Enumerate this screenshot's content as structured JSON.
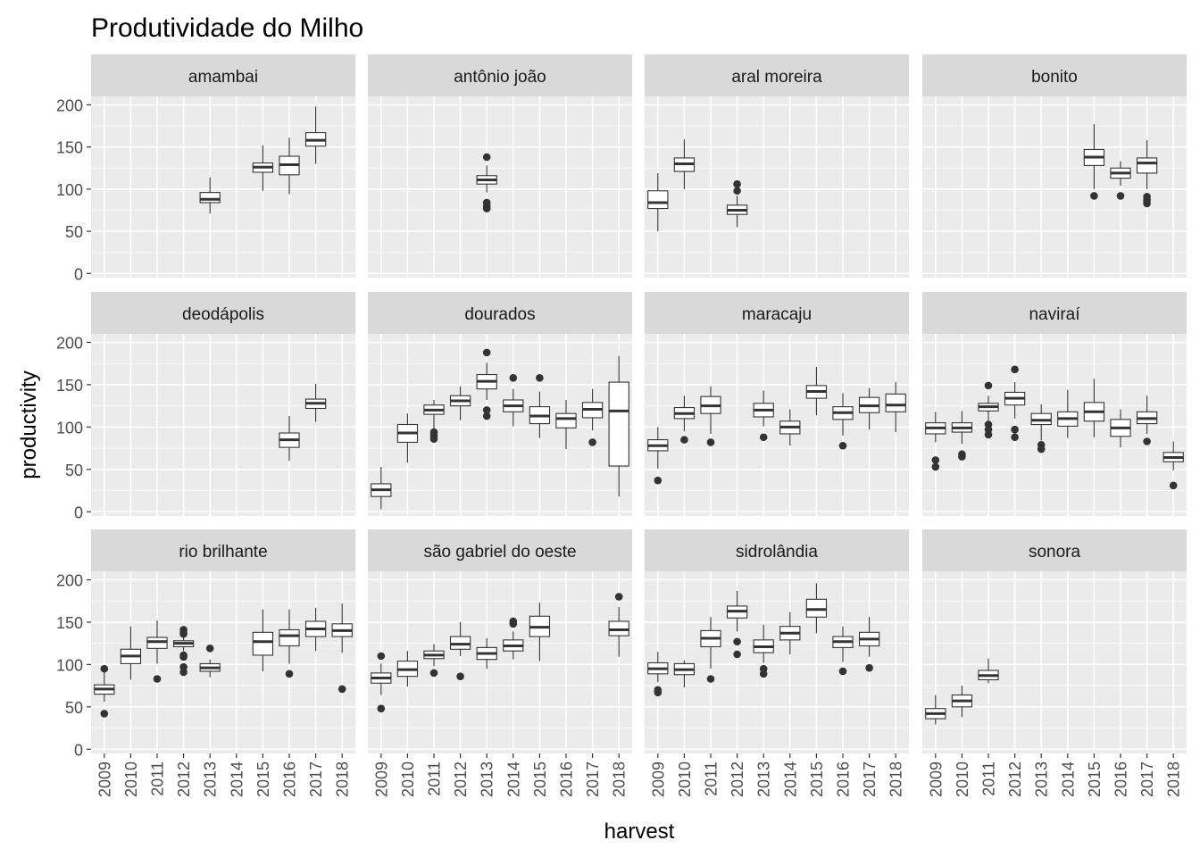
{
  "chart_data": {
    "type": "boxplot",
    "title": "Produtividade do Milho",
    "xlabel": "harvest",
    "ylabel": "productivity",
    "ylim": [
      -5,
      210
    ],
    "y_ticks": [
      0,
      50,
      100,
      150,
      200
    ],
    "x_categories": [
      "2009",
      "2010",
      "2011",
      "2012",
      "2013",
      "2014",
      "2015",
      "2016",
      "2017",
      "2018"
    ],
    "layout": "facet-wrap 3x4",
    "grid": true,
    "colors": {
      "panel_bg": "#ebebeb",
      "strip_bg": "#d9d9d9",
      "grid": "#ffffff",
      "box_fill": "#ffffff",
      "box_line": "#333333",
      "tick_text": "#4d4d4d"
    },
    "panels": [
      {
        "name": "amambai",
        "boxes": [
          {
            "x": "2013",
            "lw": 71,
            "q1": 84,
            "med": 88,
            "q3": 96,
            "uw": 114,
            "out": []
          },
          {
            "x": "2015",
            "lw": 98,
            "q1": 120,
            "med": 126,
            "q3": 131,
            "uw": 152,
            "out": []
          },
          {
            "x": "2016",
            "lw": 94,
            "q1": 117,
            "med": 129,
            "q3": 139,
            "uw": 161,
            "out": []
          },
          {
            "x": "2017",
            "lw": 130,
            "q1": 151,
            "med": 158,
            "q3": 167,
            "uw": 198,
            "out": []
          }
        ]
      },
      {
        "name": "antônio joão",
        "boxes": [
          {
            "x": "2013",
            "lw": 96,
            "q1": 106,
            "med": 111,
            "q3": 116,
            "uw": 128,
            "out": [
              138,
              84,
              80,
              77
            ]
          }
        ]
      },
      {
        "name": "aral moreira",
        "boxes": [
          {
            "x": "2009",
            "lw": 50,
            "q1": 77,
            "med": 84,
            "q3": 98,
            "uw": 119,
            "out": []
          },
          {
            "x": "2010",
            "lw": 100,
            "q1": 121,
            "med": 130,
            "q3": 137,
            "uw": 159,
            "out": []
          },
          {
            "x": "2012",
            "lw": 55,
            "q1": 70,
            "med": 75,
            "q3": 81,
            "uw": 92,
            "out": [
              106,
              98
            ]
          }
        ]
      },
      {
        "name": "bonito",
        "boxes": [
          {
            "x": "2015",
            "lw": 100,
            "q1": 128,
            "med": 138,
            "q3": 147,
            "uw": 177,
            "out": [
              92
            ]
          },
          {
            "x": "2016",
            "lw": 104,
            "q1": 113,
            "med": 119,
            "q3": 125,
            "uw": 133,
            "out": [
              92
            ]
          },
          {
            "x": "2017",
            "lw": 100,
            "q1": 119,
            "med": 131,
            "q3": 137,
            "uw": 158,
            "out": [
              91,
              87,
              83
            ]
          }
        ]
      },
      {
        "name": "deodápolis",
        "boxes": [
          {
            "x": "2016",
            "lw": 60,
            "q1": 76,
            "med": 85,
            "q3": 93,
            "uw": 113,
            "out": []
          },
          {
            "x": "2017",
            "lw": 106,
            "q1": 122,
            "med": 128,
            "q3": 133,
            "uw": 151,
            "out": []
          }
        ]
      },
      {
        "name": "dourados",
        "boxes": [
          {
            "x": "2009",
            "lw": 3,
            "q1": 18,
            "med": 26,
            "q3": 33,
            "uw": 53,
            "out": []
          },
          {
            "x": "2010",
            "lw": 58,
            "q1": 82,
            "med": 93,
            "q3": 103,
            "uw": 116,
            "out": []
          },
          {
            "x": "2011",
            "lw": 96,
            "q1": 115,
            "med": 120,
            "q3": 126,
            "uw": 132,
            "out": [
              94,
              90,
              86
            ]
          },
          {
            "x": "2012",
            "lw": 108,
            "q1": 125,
            "med": 131,
            "q3": 137,
            "uw": 148,
            "out": []
          },
          {
            "x": "2013",
            "lw": 132,
            "q1": 145,
            "med": 154,
            "q3": 162,
            "uw": 176,
            "out": [
              188,
              120,
              113
            ]
          },
          {
            "x": "2014",
            "lw": 101,
            "q1": 118,
            "med": 125,
            "q3": 132,
            "uw": 145,
            "out": [
              158
            ]
          },
          {
            "x": "2015",
            "lw": 87,
            "q1": 104,
            "med": 113,
            "q3": 124,
            "uw": 142,
            "out": [
              158
            ]
          },
          {
            "x": "2016",
            "lw": 74,
            "q1": 99,
            "med": 110,
            "q3": 116,
            "uw": 132,
            "out": []
          },
          {
            "x": "2017",
            "lw": 96,
            "q1": 111,
            "med": 121,
            "q3": 129,
            "uw": 145,
            "out": [
              82
            ]
          },
          {
            "x": "2018",
            "lw": 18,
            "q1": 54,
            "med": 119,
            "q3": 153,
            "uw": 184,
            "out": []
          }
        ]
      },
      {
        "name": "maracaju",
        "boxes": [
          {
            "x": "2009",
            "lw": 51,
            "q1": 72,
            "med": 78,
            "q3": 85,
            "uw": 100,
            "out": [
              37
            ]
          },
          {
            "x": "2010",
            "lw": 95,
            "q1": 110,
            "med": 116,
            "q3": 123,
            "uw": 137,
            "out": [
              85
            ]
          },
          {
            "x": "2011",
            "lw": 92,
            "q1": 116,
            "med": 125,
            "q3": 136,
            "uw": 148,
            "out": [
              82
            ]
          },
          {
            "x": "2013",
            "lw": 101,
            "q1": 112,
            "med": 120,
            "q3": 128,
            "uw": 143,
            "out": [
              88
            ]
          },
          {
            "x": "2014",
            "lw": 78,
            "q1": 92,
            "med": 100,
            "q3": 107,
            "uw": 121,
            "out": []
          },
          {
            "x": "2015",
            "lw": 114,
            "q1": 134,
            "med": 142,
            "q3": 149,
            "uw": 171,
            "out": []
          },
          {
            "x": "2016",
            "lw": 90,
            "q1": 109,
            "med": 117,
            "q3": 124,
            "uw": 140,
            "out": [
              78
            ]
          },
          {
            "x": "2017",
            "lw": 97,
            "q1": 117,
            "med": 125,
            "q3": 135,
            "uw": 146,
            "out": []
          },
          {
            "x": "2018",
            "lw": 94,
            "q1": 118,
            "med": 126,
            "q3": 139,
            "uw": 153,
            "out": []
          }
        ]
      },
      {
        "name": "naviraí",
        "boxes": [
          {
            "x": "2009",
            "lw": 82,
            "q1": 92,
            "med": 99,
            "q3": 105,
            "uw": 118,
            "out": [
              61,
              53
            ]
          },
          {
            "x": "2010",
            "lw": 80,
            "q1": 94,
            "med": 99,
            "q3": 105,
            "uw": 119,
            "out": [
              68,
              65
            ]
          },
          {
            "x": "2011",
            "lw": 105,
            "q1": 119,
            "med": 124,
            "q3": 128,
            "uw": 137,
            "out": [
              149,
              103,
              97,
              91
            ]
          },
          {
            "x": "2012",
            "lw": 110,
            "q1": 126,
            "med": 134,
            "q3": 141,
            "uw": 153,
            "out": [
              168,
              97,
              88
            ]
          },
          {
            "x": "2013",
            "lw": 84,
            "q1": 103,
            "med": 108,
            "q3": 116,
            "uw": 127,
            "out": [
              79,
              74
            ]
          },
          {
            "x": "2014",
            "lw": 87,
            "q1": 101,
            "med": 110,
            "q3": 118,
            "uw": 144,
            "out": []
          },
          {
            "x": "2015",
            "lw": 88,
            "q1": 107,
            "med": 118,
            "q3": 129,
            "uw": 157,
            "out": []
          },
          {
            "x": "2016",
            "lw": 76,
            "q1": 89,
            "med": 99,
            "q3": 109,
            "uw": 121,
            "out": []
          },
          {
            "x": "2017",
            "lw": 92,
            "q1": 104,
            "med": 110,
            "q3": 118,
            "uw": 137,
            "out": [
              83
            ]
          },
          {
            "x": "2018",
            "lw": 49,
            "q1": 59,
            "med": 64,
            "q3": 70,
            "uw": 83,
            "out": [
              31
            ]
          }
        ]
      },
      {
        "name": "rio brilhante",
        "boxes": [
          {
            "x": "2009",
            "lw": 56,
            "q1": 65,
            "med": 71,
            "q3": 76,
            "uw": 91,
            "out": [
              95,
              42
            ]
          },
          {
            "x": "2010",
            "lw": 82,
            "q1": 101,
            "med": 110,
            "q3": 118,
            "uw": 145,
            "out": []
          },
          {
            "x": "2011",
            "lw": 101,
            "q1": 119,
            "med": 127,
            "q3": 132,
            "uw": 152,
            "out": [
              83
            ]
          },
          {
            "x": "2012",
            "lw": 116,
            "q1": 121,
            "med": 125,
            "q3": 128,
            "uw": 133,
            "out": [
              141,
              138,
              136,
              111,
              109,
              97,
              91
            ]
          },
          {
            "x": "2013",
            "lw": 85,
            "q1": 92,
            "med": 96,
            "q3": 101,
            "uw": 106,
            "out": [
              119
            ]
          },
          {
            "x": "2015",
            "lw": 92,
            "q1": 111,
            "med": 127,
            "q3": 138,
            "uw": 165,
            "out": []
          },
          {
            "x": "2016",
            "lw": 101,
            "q1": 122,
            "med": 134,
            "q3": 141,
            "uw": 165,
            "out": [
              89
            ]
          },
          {
            "x": "2017",
            "lw": 116,
            "q1": 133,
            "med": 142,
            "q3": 151,
            "uw": 167,
            "out": []
          },
          {
            "x": "2018",
            "lw": 114,
            "q1": 133,
            "med": 140,
            "q3": 148,
            "uw": 172,
            "out": [
              71
            ]
          }
        ]
      },
      {
        "name": "são gabriel do oeste",
        "boxes": [
          {
            "x": "2009",
            "lw": 64,
            "q1": 78,
            "med": 84,
            "q3": 90,
            "uw": 101,
            "out": [
              110,
              48
            ]
          },
          {
            "x": "2010",
            "lw": 74,
            "q1": 86,
            "med": 94,
            "q3": 104,
            "uw": 116,
            "out": []
          },
          {
            "x": "2011",
            "lw": 98,
            "q1": 107,
            "med": 111,
            "q3": 116,
            "uw": 124,
            "out": [
              90
            ]
          },
          {
            "x": "2012",
            "lw": 110,
            "q1": 118,
            "med": 124,
            "q3": 133,
            "uw": 150,
            "out": [
              86
            ]
          },
          {
            "x": "2013",
            "lw": 95,
            "q1": 106,
            "med": 113,
            "q3": 120,
            "uw": 131,
            "out": []
          },
          {
            "x": "2014",
            "lw": 106,
            "q1": 116,
            "med": 122,
            "q3": 129,
            "uw": 139,
            "out": [
              151,
              148
            ]
          },
          {
            "x": "2015",
            "lw": 104,
            "q1": 133,
            "med": 144,
            "q3": 157,
            "uw": 173,
            "out": []
          },
          {
            "x": "2018",
            "lw": 109,
            "q1": 134,
            "med": 141,
            "q3": 151,
            "uw": 168,
            "out": [
              180
            ]
          }
        ]
      },
      {
        "name": "sidrolândia",
        "boxes": [
          {
            "x": "2009",
            "lw": 79,
            "q1": 89,
            "med": 95,
            "q3": 102,
            "uw": 115,
            "out": [
              70,
              67
            ]
          },
          {
            "x": "2010",
            "lw": 73,
            "q1": 88,
            "med": 94,
            "q3": 101,
            "uw": 105,
            "out": []
          },
          {
            "x": "2011",
            "lw": 95,
            "q1": 121,
            "med": 131,
            "q3": 140,
            "uw": 156,
            "out": [
              83
            ]
          },
          {
            "x": "2012",
            "lw": 139,
            "q1": 155,
            "med": 163,
            "q3": 169,
            "uw": 187,
            "out": [
              127,
              112
            ]
          },
          {
            "x": "2013",
            "lw": 102,
            "q1": 114,
            "med": 121,
            "q3": 129,
            "uw": 147,
            "out": [
              95,
              89
            ]
          },
          {
            "x": "2014",
            "lw": 112,
            "q1": 129,
            "med": 137,
            "q3": 145,
            "uw": 162,
            "out": []
          },
          {
            "x": "2015",
            "lw": 137,
            "q1": 156,
            "med": 165,
            "q3": 177,
            "uw": 196,
            "out": []
          },
          {
            "x": "2016",
            "lw": 103,
            "q1": 120,
            "med": 127,
            "q3": 133,
            "uw": 145,
            "out": [
              92
            ]
          },
          {
            "x": "2017",
            "lw": 109,
            "q1": 122,
            "med": 130,
            "q3": 138,
            "uw": 156,
            "out": [
              96
            ]
          }
        ]
      },
      {
        "name": "sonora",
        "boxes": [
          {
            "x": "2009",
            "lw": 29,
            "q1": 36,
            "med": 42,
            "q3": 48,
            "uw": 64,
            "out": []
          },
          {
            "x": "2010",
            "lw": 38,
            "q1": 50,
            "med": 57,
            "q3": 64,
            "uw": 75,
            "out": []
          },
          {
            "x": "2011",
            "lw": 78,
            "q1": 82,
            "med": 87,
            "q3": 93,
            "uw": 107,
            "out": []
          }
        ]
      }
    ]
  }
}
